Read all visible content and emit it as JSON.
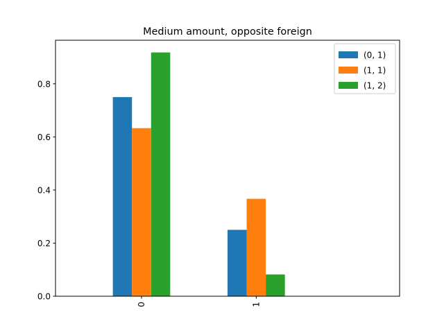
{
  "chart_data": {
    "type": "bar",
    "title": "Medium amount, opposite foreign",
    "xlabel": "",
    "ylabel": "",
    "categories": [
      "0",
      "1"
    ],
    "series": [
      {
        "name": "(0, 1)",
        "color": "#1f77b4",
        "values": [
          0.75,
          0.25
        ]
      },
      {
        "name": "(1, 1)",
        "color": "#ff7f0e",
        "values": [
          0.633,
          0.367
        ]
      },
      {
        "name": "(1, 2)",
        "color": "#2ca02c",
        "values": [
          0.918,
          0.082
        ]
      }
    ],
    "ylim": [
      0,
      0.964
    ],
    "yticks": [
      0.0,
      0.2,
      0.4,
      0.6,
      0.8
    ],
    "ytick_labels": [
      "0.0",
      "0.2",
      "0.4",
      "0.6",
      "0.8"
    ],
    "grid": false,
    "legend_position": "top-right"
  }
}
